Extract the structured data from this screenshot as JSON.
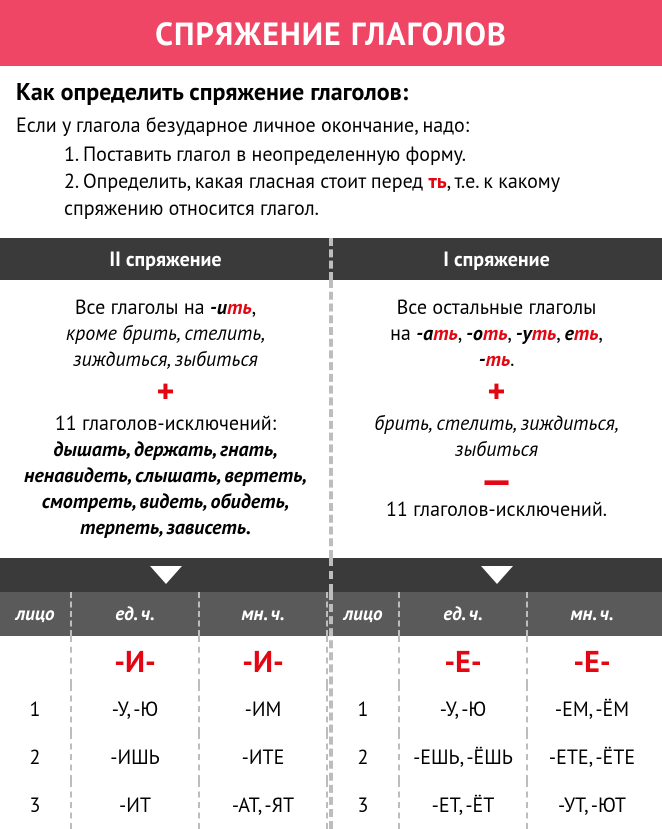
{
  "title": "СПРЯЖЕНИЕ ГЛАГОЛОВ",
  "intro": {
    "heading": "Как определить спряжение глаголов:",
    "lead": "Если у глагола безударное личное окончание, надо:",
    "step1": "1. Поставить глагол в неопределенную форму.",
    "step2a": "2. Определить, какая гласная стоит перед ",
    "step2_red": "ть",
    "step2b": ", т.е. к какому спряжению относится глагол."
  },
  "columns": {
    "left_header": "II спряжение",
    "right_header": "I спряжение"
  },
  "left_rules": {
    "l1a": "Все глаголы на  ",
    "l1b": "-ить",
    "l1b_black": "-и",
    "l1b_red": "ть",
    "l1c": ",",
    "l2": "кроме брить, стелить, зиждиться, зыбиться",
    "l3": "11 глаголов-исключений:",
    "l4": "дышать, держать, гнать, ненавидеть, слышать, вертеть, смотреть, видеть, обидеть, терпеть, зависеть."
  },
  "right_rules": {
    "r1": "Все остальные глаголы",
    "r2_pre": "на ",
    "r2_items": [
      "-ать",
      "-оть",
      "-уть",
      "еть"
    ],
    "r2_black": [
      "-а",
      "-о",
      "-у",
      "е"
    ],
    "r2_red": "ть",
    "r3_black": "-",
    "r3_red": "ть",
    "r3_dot": ".",
    "r4": "брить, стелить, зиждиться, зыбиться",
    "r5": "11 глаголов-исключений."
  },
  "table": {
    "headers": {
      "lico": "лицо",
      "ed": "ед. ч.",
      "mn": "мн. ч."
    },
    "vowel_left": "-И-",
    "vowel_right": "-Е-",
    "rows_left": [
      {
        "p": "1",
        "ed": "-У, -Ю",
        "mn": "-ИМ"
      },
      {
        "p": "2",
        "ed": "-ИШЬ",
        "mn": "-ИТЕ"
      },
      {
        "p": "3",
        "ed": "-ИТ",
        "mn": "-АТ, -ЯТ"
      }
    ],
    "rows_right": [
      {
        "p": "1",
        "ed": "-У, -Ю",
        "mn": "-ЕМ, -ЁМ"
      },
      {
        "p": "2",
        "ed": "-ЕШЬ, -ЁШЬ",
        "mn": "-ЕТЕ, -ЁТЕ"
      },
      {
        "p": "3",
        "ed": "-ЕТ, -ЁТ",
        "mn": "-УТ, -ЮТ"
      }
    ]
  },
  "colors": {
    "accent": "#ef4666",
    "red": "#e30613",
    "dark": "#3a3a3a",
    "mid": "#5a5a5a",
    "dash": "#bdbdbd",
    "bg": "#ffffff"
  }
}
